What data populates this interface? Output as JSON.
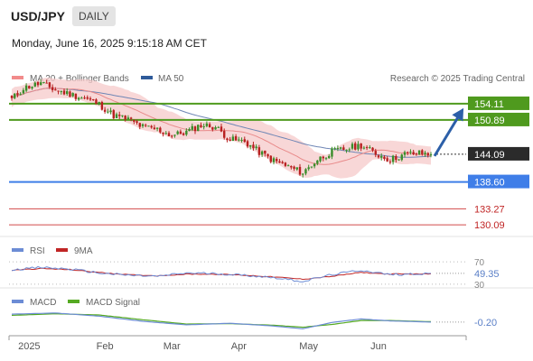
{
  "header": {
    "symbol": "USD/JPY",
    "timeframe": "DAILY",
    "datetime": "Monday, June 16, 2025 9:15:18 AM CET"
  },
  "legend": {
    "ma20_bollinger": "MA 20 + Bollinger Bands",
    "ma50": "MA 50",
    "credit": "Research © 2025 Trading Central",
    "rsi": "RSI",
    "rsi_9ma": "9MA",
    "macd": "MACD",
    "macd_signal": "MACD Signal"
  },
  "colors": {
    "up": "#3a8d2a",
    "down": "#b82020",
    "band": "#f6c9c9",
    "ma20": "#e88a8a",
    "ma50": "#6f86b5",
    "resistance": "#4f9a1e",
    "support": "#3f7ee8",
    "target": "#d24a4a",
    "arrow": "#2c5fa8",
    "rsi": "#6c8cd5",
    "rsi_ma": "#c02525",
    "macd": "#6c8cd5",
    "macd_signal": "#55aa22"
  },
  "chart_data": [
    {
      "type": "candlestick",
      "title": "USD/JPY Daily",
      "x_ticks": [
        "2025",
        "Feb",
        "Mar",
        "Apr",
        "May",
        "Jun"
      ],
      "ylim": [
        128.5,
        157.5
      ],
      "levels": [
        {
          "label": "154.11",
          "value": 154.11,
          "kind": "resistance"
        },
        {
          "label": "150.89",
          "value": 150.89,
          "kind": "resistance"
        },
        {
          "label": "144.09",
          "value": 144.09,
          "kind": "last"
        },
        {
          "label": "138.60",
          "value": 138.6,
          "kind": "support"
        },
        {
          "label": "133.27",
          "value": 133.27,
          "kind": "target"
        },
        {
          "label": "130.09",
          "value": 130.09,
          "kind": "target"
        }
      ],
      "forecast_arrow": {
        "from": 144.09,
        "to": 154.11
      },
      "close_anchors": [
        [
          0,
          155.0
        ],
        [
          4,
          157.2
        ],
        [
          10,
          158.2
        ],
        [
          15,
          156.8
        ],
        [
          20,
          156.0
        ],
        [
          25,
          155.2
        ],
        [
          30,
          154.0
        ],
        [
          35,
          151.8
        ],
        [
          40,
          151.0
        ],
        [
          45,
          149.5
        ],
        [
          50,
          149.0
        ],
        [
          55,
          147.8
        ],
        [
          60,
          148.5
        ],
        [
          65,
          149.9
        ],
        [
          70,
          149.5
        ],
        [
          75,
          147.0
        ],
        [
          80,
          146.6
        ],
        [
          85,
          144.5
        ],
        [
          90,
          142.8
        ],
        [
          95,
          141.6
        ],
        [
          100,
          140.4
        ],
        [
          105,
          143.0
        ],
        [
          110,
          144.6
        ],
        [
          115,
          145.2
        ],
        [
          120,
          145.9
        ],
        [
          125,
          144.2
        ],
        [
          130,
          143.0
        ],
        [
          135,
          144.1
        ],
        [
          140,
          144.3
        ],
        [
          144,
          144.09
        ]
      ]
    },
    {
      "type": "line",
      "title": "RSI",
      "ylim": [
        25,
        75
      ],
      "ref_lines": [
        70,
        30
      ],
      "tick_labels": [
        "70",
        "30"
      ],
      "last_value": 49.35,
      "last_label": "49.35",
      "series": [
        {
          "name": "RSI",
          "points": [
            [
              0,
              56
            ],
            [
              10,
              60
            ],
            [
              20,
              57
            ],
            [
              30,
              50
            ],
            [
              40,
              46
            ],
            [
              50,
              44
            ],
            [
              60,
              50
            ],
            [
              70,
              49
            ],
            [
              80,
              46
            ],
            [
              90,
              42
            ],
            [
              100,
              35
            ],
            [
              110,
              47
            ],
            [
              120,
              55
            ],
            [
              130,
              47
            ],
            [
              144,
              49.35
            ]
          ]
        },
        {
          "name": "9MA",
          "points": [
            [
              0,
              55
            ],
            [
              10,
              58
            ],
            [
              20,
              56
            ],
            [
              30,
              51
            ],
            [
              40,
              47
            ],
            [
              50,
              45
            ],
            [
              60,
              48
            ],
            [
              70,
              48
            ],
            [
              80,
              46
            ],
            [
              90,
              43
            ],
            [
              100,
              39
            ],
            [
              110,
              44
            ],
            [
              120,
              51
            ],
            [
              130,
              48
            ],
            [
              144,
              48.5
            ]
          ]
        }
      ]
    },
    {
      "type": "line",
      "title": "MACD",
      "ylim": [
        -3.2,
        3.2
      ],
      "last_value": -0.2,
      "last_label": "-0.20",
      "series": [
        {
          "name": "MACD",
          "points": [
            [
              0,
              1.8
            ],
            [
              15,
              2.1
            ],
            [
              30,
              1.3
            ],
            [
              45,
              0.0
            ],
            [
              60,
              -0.9
            ],
            [
              75,
              -0.5
            ],
            [
              90,
              -1.2
            ],
            [
              100,
              -1.9
            ],
            [
              110,
              -0.3
            ],
            [
              120,
              0.6
            ],
            [
              130,
              0.1
            ],
            [
              144,
              -0.2
            ]
          ]
        },
        {
          "name": "MACD Signal",
          "points": [
            [
              0,
              1.5
            ],
            [
              15,
              1.9
            ],
            [
              30,
              1.6
            ],
            [
              45,
              0.4
            ],
            [
              60,
              -0.7
            ],
            [
              75,
              -0.6
            ],
            [
              90,
              -1.0
            ],
            [
              100,
              -1.5
            ],
            [
              110,
              -0.8
            ],
            [
              120,
              0.2
            ],
            [
              130,
              0.2
            ],
            [
              144,
              -0.1
            ]
          ]
        }
      ]
    }
  ]
}
